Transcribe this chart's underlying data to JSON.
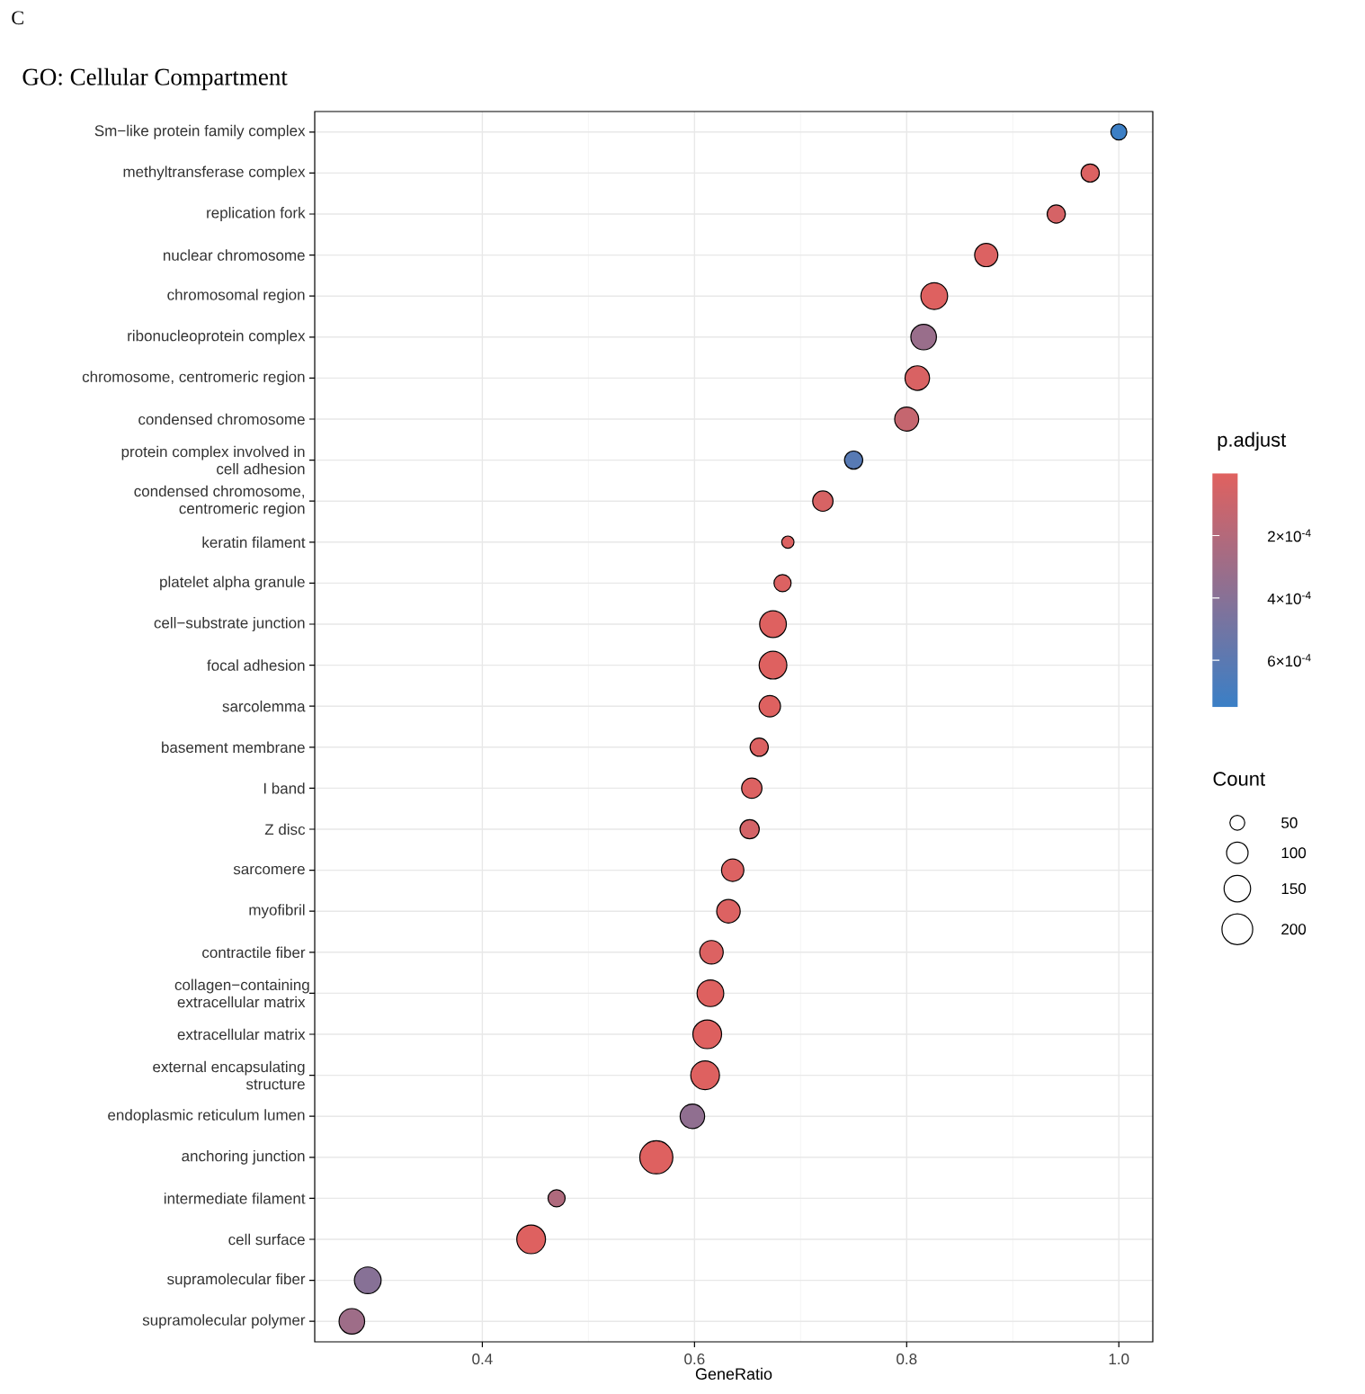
{
  "chart_data": {
    "type": "bubble",
    "orientation": "horizontal",
    "title": "GO: Cellular Compartment",
    "annotations": [
      "C"
    ],
    "xlabel": "GeneRatio",
    "clabel": "p.adjust",
    "legend_title": "Count",
    "grid": true,
    "categories": [
      "Sm−like protein family complex",
      "methyltransferase complex",
      "replication fork",
      "nuclear chromosome",
      "chromosomal region",
      "ribonucleoprotein complex",
      "chromosome, centromeric region",
      "condensed chromosome",
      "protein complex involved in cell adhesion",
      "condensed chromosome, centromeric region",
      "keratin filament",
      "platelet alpha granule",
      "cell−substrate junction",
      "focal adhesion",
      "sarcolemma",
      "basement membrane",
      "I band",
      "Z disc",
      "sarcomere",
      "myofibril",
      "contractile fiber",
      "collagen−containing extracellular matrix",
      "extracellular matrix",
      "external encapsulating structure",
      "endoplasmic reticulum lumen",
      "anchoring junction",
      "intermediate filament",
      "cell surface",
      "supramolecular fiber",
      "supramolecular polymer"
    ],
    "values": [
      1.0,
      0.973,
      0.941,
      0.875,
      0.826,
      0.816,
      0.81,
      0.8,
      0.75,
      0.721,
      0.688,
      0.683,
      0.674,
      0.674,
      0.671,
      0.661,
      0.654,
      0.652,
      0.636,
      0.632,
      0.616,
      0.615,
      0.612,
      0.61,
      0.598,
      0.564,
      0.47,
      0.446,
      0.292,
      0.277
    ],
    "sizes": [
      57,
      73,
      73,
      116,
      152,
      140,
      129,
      124,
      73,
      90,
      35,
      65,
      152,
      163,
      99,
      73,
      90,
      81,
      108,
      119,
      119,
      152,
      175,
      175,
      129,
      230,
      65,
      175,
      152,
      140
    ],
    "cvalues": [
      0.00074,
      2e-05,
      5e-05,
      2e-05,
      1e-05,
      0.00032,
      3e-05,
      0.00012,
      0.00062,
      4e-05,
      2e-05,
      2e-05,
      1e-05,
      1e-05,
      1e-05,
      2e-05,
      2e-05,
      6e-05,
      2e-05,
      2e-05,
      2e-05,
      1e-05,
      1e-05,
      1e-05,
      0.00036,
      1e-05,
      0.00022,
      1e-05,
      0.0004,
      0.0003
    ],
    "size_legend": [
      50,
      100,
      150,
      200
    ],
    "xlim": [
      0.242,
      1.032
    ],
    "xticks": [
      0.4,
      0.6,
      0.8,
      {
        "value": 1.0,
        "label": "1.0"
      }
    ],
    "clim": [
      0,
      0.00075
    ],
    "cticks": [
      {
        "value": 0.0002,
        "label": "2×10$^{-4}$"
      },
      {
        "value": 0.0004,
        "label": "4×10$^{-4}$"
      },
      {
        "value": 0.0006,
        "label": "6×10$^{-4}$"
      }
    ]
  }
}
